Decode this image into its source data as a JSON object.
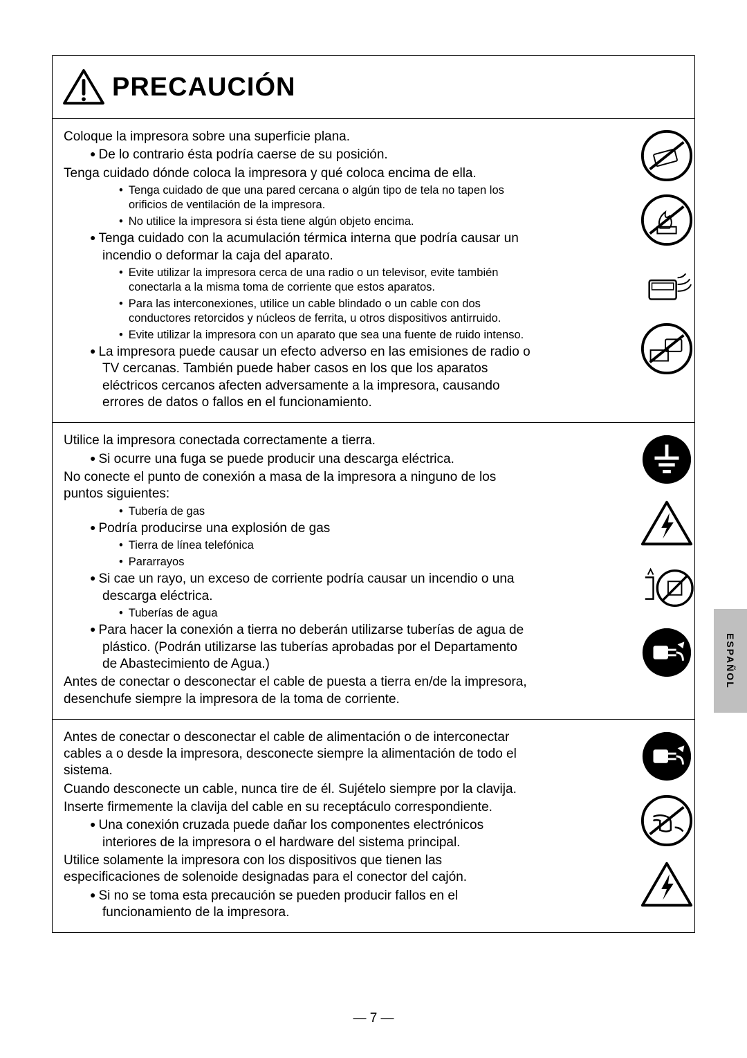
{
  "header": {
    "title": "PRECAUCIÓN"
  },
  "sideTab": "ESPAÑOL",
  "pageNumber": "— 7 —",
  "sections": [
    {
      "lines": [
        {
          "t": "main",
          "txt": "Coloque la impresora sobre una superficie plana."
        },
        {
          "t": "bullet",
          "txt": "De lo contrario ésta podría caerse de su posición."
        },
        {
          "t": "main",
          "txt": "Tenga cuidado dónde coloca la impresora y qué coloca encima de ella."
        },
        {
          "t": "dash",
          "txt": "Tenga cuidado de que una pared cercana o algún tipo de tela no tapen los orificios de ventilación de la impresora."
        },
        {
          "t": "dash",
          "txt": "No utilice la impresora si ésta tiene algún objeto encima."
        },
        {
          "t": "bullet",
          "txt": "Tenga cuidado con la acumulación térmica interna que podría causar un incendio o deformar la caja del aparato."
        },
        {
          "t": "dash",
          "txt": "Evite utilizar la impresora cerca de una radio o un televisor, evite también conectarla a la misma toma de corriente que estos aparatos."
        },
        {
          "t": "dash",
          "txt": "Para las interconexiones, utilice un cable blindado o un cable con dos conductores retorcidos y núcleos de ferrita, u otros dispositivos antirruido."
        },
        {
          "t": "dash",
          "txt": "Evite utilizar la impresora con un aparato que sea una fuente de ruido intenso."
        },
        {
          "t": "bullet",
          "txt": "La impresora puede causar un efecto adverso en las emisiones de radio o TV cercanas. También puede haber casos en los que los aparatos eléctricos cercanos afecten adversamente a la impresora, causando errores de datos o fallos en el funcionamiento."
        }
      ],
      "icons": [
        "no-slope",
        "no-fire",
        "radio-noise",
        "no-tv"
      ]
    },
    {
      "lines": [
        {
          "t": "main",
          "txt": "Utilice la impresora conectada correctamente a tierra."
        },
        {
          "t": "bullet",
          "txt": "Si ocurre una fuga se puede producir una descarga eléctrica."
        },
        {
          "t": "main",
          "txt": "No conecte el punto de conexión a masa de la impresora a ninguno de los puntos siguientes:"
        },
        {
          "t": "dash",
          "txt": "Tubería de gas"
        },
        {
          "t": "bullet",
          "txt": "Podría producirse una explosión de gas"
        },
        {
          "t": "dash",
          "txt": "Tierra de línea telefónica"
        },
        {
          "t": "dash",
          "txt": "Pararrayos"
        },
        {
          "t": "bullet",
          "txt": "Si cae un rayo, un exceso de corriente podría causar un incendio o una descarga eléctrica."
        },
        {
          "t": "dash",
          "txt": "Tuberías de agua"
        },
        {
          "t": "bullet",
          "txt": "Para hacer la conexión a tierra no deberán utilizarse tuberías de agua de plástico. (Podrán utilizarse las tuberías aprobadas por el Departamento de Abastecimiento de Agua.)"
        },
        {
          "t": "main",
          "txt": "Antes de conectar o desconectar el cable de puesta a tierra en/de la impresora, desenchufe siempre la impresora de la toma de corriente."
        }
      ],
      "icons": [
        "ground",
        "shock-warn",
        "no-pipes",
        "unplug"
      ]
    },
    {
      "lines": [
        {
          "t": "main",
          "txt": "Antes de conectar o desconectar el cable de alimentación o de interconectar cables a o desde la impresora, desconecte siempre la alimentación de todo el sistema."
        },
        {
          "t": "main",
          "txt": "Cuando desconecte un cable, nunca tire de él. Sujételo siempre por la clavija."
        },
        {
          "t": "main",
          "txt": "Inserte firmemente la clavija del cable en su receptáculo correspondiente."
        },
        {
          "t": "bullet",
          "txt": "Una conexión cruzada puede dañar los componentes electrónicos interiores de la impresora o el hardware del sistema principal."
        },
        {
          "t": "main",
          "txt": "Utilice solamente la impresora con los dispositivos que tienen las especificaciones de solenoide designadas para el conector del cajón."
        },
        {
          "t": "bullet",
          "txt": "Si no se toma esta precaución se pueden producir fallos en el funcionamiento de la impresora."
        }
      ],
      "icons": [
        "unplug",
        "no-pull",
        "shock-warn"
      ]
    }
  ]
}
